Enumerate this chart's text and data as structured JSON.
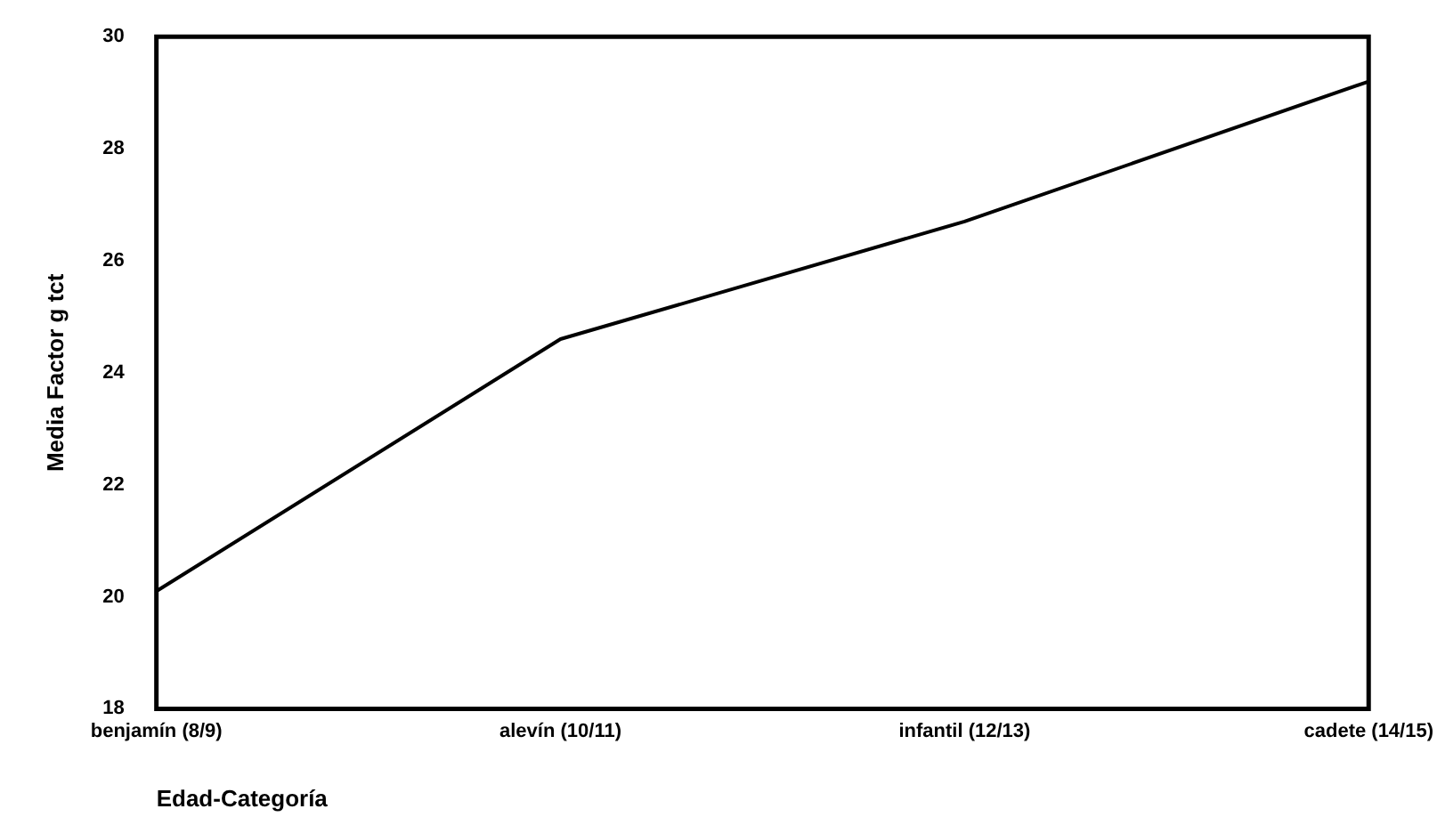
{
  "chart_data": {
    "type": "line",
    "xlabel": "Edad-Categoría",
    "ylabel": "Media Factor g tct",
    "categories": [
      "benjamín (8/9)",
      "alevín (10/11)",
      "infantil (12/13)",
      "cadete (14/15)"
    ],
    "series": [
      {
        "color": "#000000",
        "values": [
          20.1,
          24.6,
          26.7,
          29.2
        ]
      }
    ],
    "ylim": [
      18,
      30
    ],
    "yticks": [
      18,
      20,
      22,
      24,
      26,
      28,
      30
    ],
    "grid": false,
    "legend": false,
    "marker": "none",
    "line_style": "solid"
  }
}
